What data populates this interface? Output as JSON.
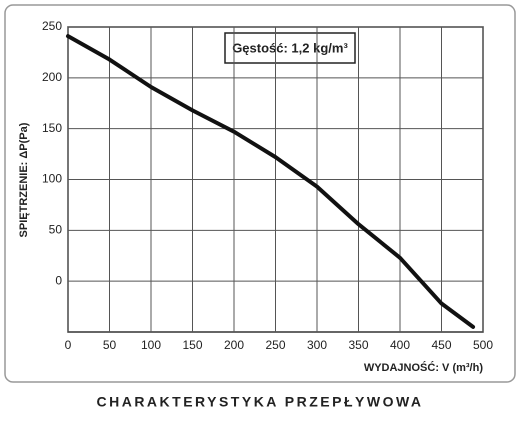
{
  "chart_data": {
    "type": "line",
    "title": "CHARAKTERYSTYKA PRZEPŁYWOWA",
    "x_label": "WYDAJNOŚĆ: V (m³/h)",
    "y_label": "SPIĘTRZENIE: ΔP(Pa)",
    "annotation": "Gęstość: 1,2 kg/m³",
    "x": [
      0,
      50,
      100,
      150,
      200,
      250,
      300,
      350,
      400,
      450,
      488
    ],
    "series": [
      {
        "color": "#111111",
        "values": [
          241,
          218,
          191,
          168,
          147,
          122,
          93,
          56,
          23,
          -22,
          -45
        ]
      }
    ],
    "xlim": [
      0,
      500
    ],
    "xticks": [
      0,
      50,
      100,
      150,
      200,
      250,
      300,
      350,
      400,
      450,
      500
    ],
    "ylim": [
      -50,
      250
    ],
    "yticks": [
      0,
      50,
      100,
      150,
      200,
      250
    ],
    "grid": true
  }
}
